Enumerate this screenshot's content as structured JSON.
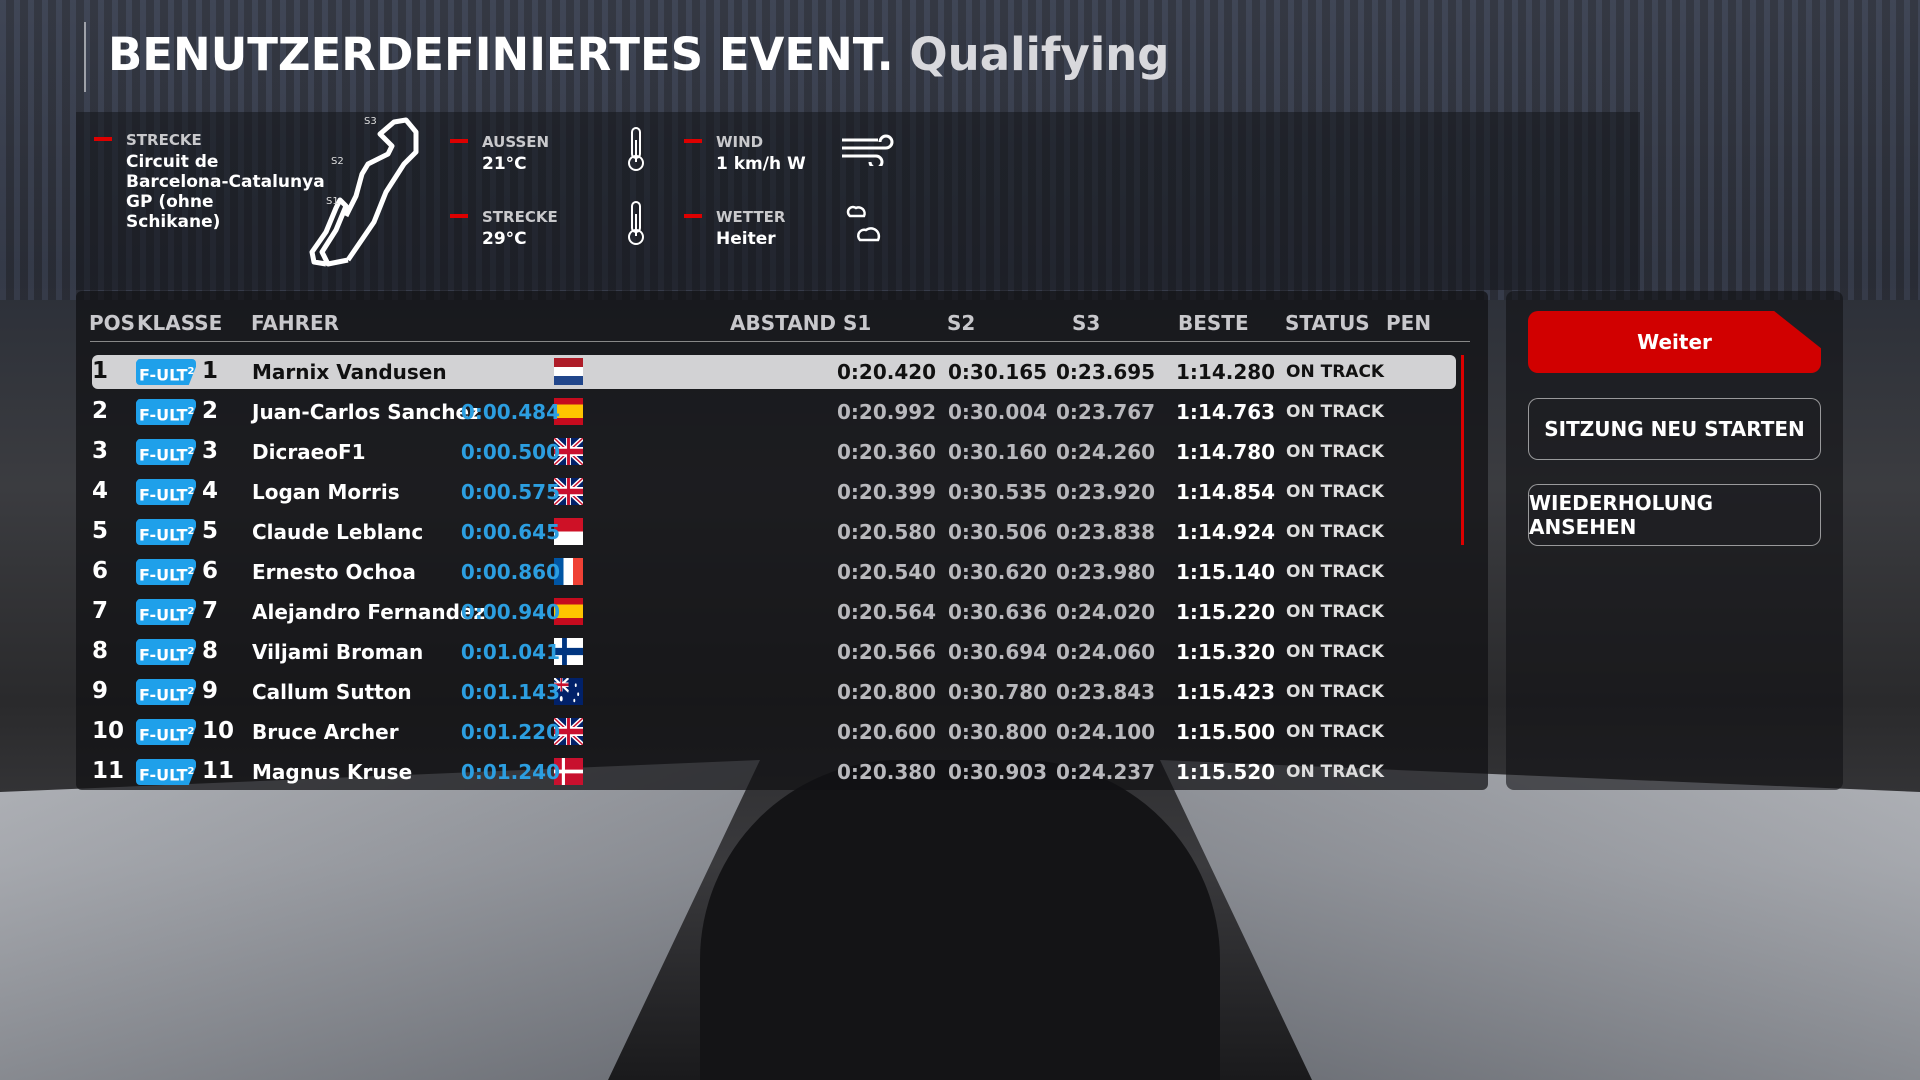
{
  "header": {
    "title": "BENUTZERDEFINIERTES EVENT.",
    "subtitle": "Qualifying"
  },
  "conditions": {
    "track_label": "STRECKE",
    "track_name": [
      "Circuit de",
      "Barcelona-Catalunya",
      "GP (ohne",
      "Schikane)"
    ],
    "sector_labels": [
      "S1",
      "S2",
      "S3"
    ],
    "air_label": "AUSSEN",
    "air_value": "21°C",
    "track_temp_label": "STRECKE",
    "track_temp_value": "29°C",
    "wind_label": "WIND",
    "wind_value": "1 km/h  W",
    "weather_label": "WETTER",
    "weather_value": "Heiter",
    "accent": "#d00000"
  },
  "table": {
    "headers": {
      "pos": "POS",
      "class": "KLASSE",
      "driver": "FAHRER",
      "gap": "ABSTAND",
      "s1": "S1",
      "s2": "S2",
      "s3": "S3",
      "best": "BESTE",
      "status": "STATUS",
      "pen": "PEN"
    },
    "class_badge": {
      "text": "F-ULT",
      "sup": "2",
      "color": "#1fa0ea"
    },
    "rows": [
      {
        "pos": "1",
        "num": "1",
        "name": "Marnix Vandusen",
        "flag": "nl",
        "gap": "",
        "s1": "0:20.420",
        "s2": "0:30.165",
        "s3": "0:23.695",
        "best": "1:14.280",
        "status": "ON TRACK",
        "selected": true
      },
      {
        "pos": "2",
        "num": "2",
        "name": "Juan-Carlos Sanchez",
        "flag": "es",
        "gap": "0:00.484",
        "s1": "0:20.992",
        "s2": "0:30.004",
        "s3": "0:23.767",
        "best": "1:14.763",
        "status": "ON TRACK"
      },
      {
        "pos": "3",
        "num": "3",
        "name": "DicraeoF1",
        "flag": "gb",
        "gap": "0:00.500",
        "s1": "0:20.360",
        "s2": "0:30.160",
        "s3": "0:24.260",
        "best": "1:14.780",
        "status": "ON TRACK"
      },
      {
        "pos": "4",
        "num": "4",
        "name": "Logan Morris",
        "flag": "gb",
        "gap": "0:00.575",
        "s1": "0:20.399",
        "s2": "0:30.535",
        "s3": "0:23.920",
        "best": "1:14.854",
        "status": "ON TRACK"
      },
      {
        "pos": "5",
        "num": "5",
        "name": "Claude Leblanc",
        "flag": "mc",
        "gap": "0:00.645",
        "s1": "0:20.580",
        "s2": "0:30.506",
        "s3": "0:23.838",
        "best": "1:14.924",
        "status": "ON TRACK"
      },
      {
        "pos": "6",
        "num": "6",
        "name": "Ernesto Ochoa",
        "flag": "fr",
        "gap": "0:00.860",
        "s1": "0:20.540",
        "s2": "0:30.620",
        "s3": "0:23.980",
        "best": "1:15.140",
        "status": "ON TRACK"
      },
      {
        "pos": "7",
        "num": "7",
        "name": "Alejandro Fernandez",
        "flag": "es",
        "gap": "0:00.940",
        "s1": "0:20.564",
        "s2": "0:30.636",
        "s3": "0:24.020",
        "best": "1:15.220",
        "status": "ON TRACK"
      },
      {
        "pos": "8",
        "num": "8",
        "name": "Viljami Broman",
        "flag": "fi",
        "gap": "0:01.041",
        "s1": "0:20.566",
        "s2": "0:30.694",
        "s3": "0:24.060",
        "best": "1:15.320",
        "status": "ON TRACK"
      },
      {
        "pos": "9",
        "num": "9",
        "name": "Callum Sutton",
        "flag": "au",
        "gap": "0:01.143",
        "s1": "0:20.800",
        "s2": "0:30.780",
        "s3": "0:23.843",
        "best": "1:15.423",
        "status": "ON TRACK"
      },
      {
        "pos": "10",
        "num": "10",
        "name": "Bruce Archer",
        "flag": "gb",
        "gap": "0:01.220",
        "s1": "0:20.600",
        "s2": "0:30.800",
        "s3": "0:24.100",
        "best": "1:15.500",
        "status": "ON TRACK"
      },
      {
        "pos": "11",
        "num": "11",
        "name": "Magnus Kruse",
        "flag": "dk",
        "gap": "0:01.240",
        "s1": "0:20.380",
        "s2": "0:30.903",
        "s3": "0:24.237",
        "best": "1:15.520",
        "status": "ON TRACK"
      }
    ]
  },
  "actions": {
    "continue": "Weiter",
    "restart": "SITZUNG NEU STARTEN",
    "replay": "WIEDERHOLUNG ANSEHEN",
    "primary_color": "#d10000"
  }
}
